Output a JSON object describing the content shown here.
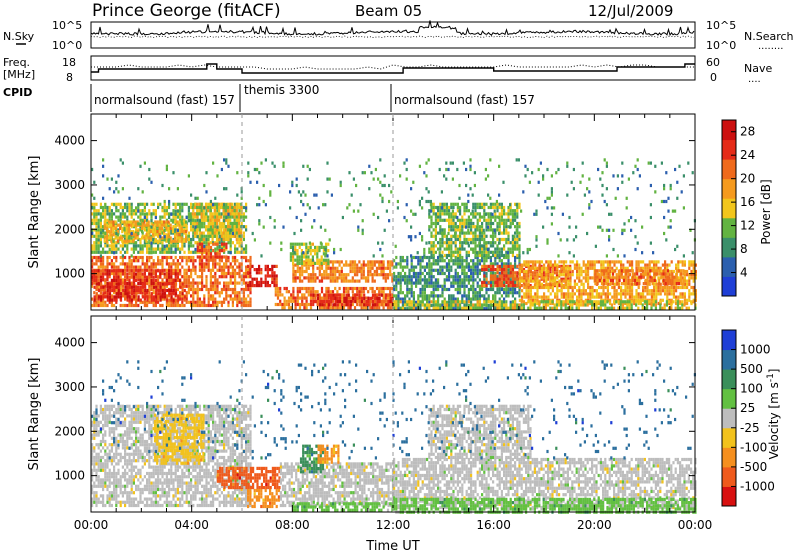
{
  "header": {
    "station": "Prince George (fitACF)",
    "beam": "Beam 05",
    "date": "12/Jul/2009"
  },
  "strip_labels": {
    "nsky": "N.Sky",
    "nsearch": "N.Search",
    "freq_line1": "Freq.",
    "freq_line2": "[MHz]",
    "nave": "Nave",
    "cpid": "CPID",
    "nsky_top": "10^5",
    "nsky_bottom": "10^0",
    "nsearch_top": "10^5",
    "nsearch_bottom": "10^0",
    "freq_top": "18",
    "freq_bottom": "8",
    "nave_top": "60",
    "nave_bottom": "0",
    "nsearch_style": "........",
    "nave_style": "...."
  },
  "cpid_segments": [
    {
      "label": "normalsound (fast) 157",
      "start_hour": 0
    },
    {
      "label": "themis 3300",
      "start_hour": 6
    },
    {
      "label": "normalsound (fast) 157",
      "start_hour": 12
    }
  ],
  "colors": {
    "power": [
      "#1f3fd6",
      "#2b5fae",
      "#3a8f6a",
      "#62b341",
      "#f2c61c",
      "#f59a1e",
      "#ef6a1c",
      "#e52b18",
      "#cc1010"
    ],
    "velocity": [
      "#1f3fd6",
      "#2b6f9e",
      "#3a8f5a",
      "#62c041",
      "#bdbdbd",
      "#f2c21c",
      "#f58f1e",
      "#ef5a1c",
      "#d81010"
    ]
  },
  "chart_data": [
    {
      "type": "heatmap",
      "name": "Power",
      "xlabel": "",
      "ylabel": "Slant Range [km]",
      "xlim": [
        0,
        24
      ],
      "ylim": [
        180,
        4600
      ],
      "yticks": [
        1000,
        2000,
        3000,
        4000
      ],
      "colorbar_label": "Power [dB]",
      "colorbar_ticks": [
        "4",
        "8",
        "12",
        "16",
        "20",
        "24",
        "28"
      ],
      "colorbar_range": [
        0,
        30
      ],
      "patches": [
        {
          "x0": 0.0,
          "x1": 6.3,
          "r0": 300,
          "r1": 1400,
          "v": 22
        },
        {
          "x0": 0.0,
          "x1": 3.5,
          "r0": 800,
          "r1": 1100,
          "v": 26
        },
        {
          "x0": 0.1,
          "x1": 3.7,
          "r0": 400,
          "r1": 800,
          "v": 27
        },
        {
          "x0": 0.0,
          "x1": 6.2,
          "r0": 1500,
          "r1": 2600,
          "v": 12
        },
        {
          "x0": 0.5,
          "x1": 3.8,
          "r0": 1700,
          "r1": 2200,
          "v": 17
        },
        {
          "x0": 4.0,
          "x1": 6.0,
          "r0": 1800,
          "r1": 2600,
          "v": 15
        },
        {
          "x0": 4.2,
          "x1": 5.4,
          "r0": 1300,
          "r1": 1700,
          "v": 24
        },
        {
          "x0": 6.2,
          "x1": 7.4,
          "r0": 700,
          "r1": 1200,
          "v": 28
        },
        {
          "x0": 7.3,
          "x1": 12.0,
          "r0": 200,
          "r1": 700,
          "v": 22
        },
        {
          "x0": 8.0,
          "x1": 12.0,
          "r0": 800,
          "r1": 1300,
          "v": 21
        },
        {
          "x0": 7.9,
          "x1": 9.4,
          "r0": 1200,
          "r1": 1700,
          "v": 13
        },
        {
          "x0": 8.8,
          "x1": 12.0,
          "r0": 300,
          "r1": 550,
          "v": 27
        },
        {
          "x0": 12.0,
          "x1": 17.0,
          "r0": 200,
          "r1": 1400,
          "v": 8
        },
        {
          "x0": 13.4,
          "x1": 17.0,
          "r0": 1400,
          "r1": 2600,
          "v": 11
        },
        {
          "x0": 15.5,
          "x1": 19.0,
          "r0": 700,
          "r1": 1200,
          "v": 24
        },
        {
          "x0": 17.0,
          "x1": 24.0,
          "r0": 300,
          "r1": 1300,
          "v": 18
        },
        {
          "x0": 20.0,
          "x1": 23.5,
          "r0": 800,
          "r1": 1100,
          "v": 21
        },
        {
          "x0": 12.0,
          "x1": 24.0,
          "r0": 200,
          "r1": 400,
          "v": 14
        },
        {
          "x0": 0.0,
          "x1": 24.0,
          "r0": 1400,
          "r1": 3600,
          "v": 8,
          "d": 0.06
        }
      ]
    },
    {
      "type": "heatmap",
      "name": "Velocity",
      "xlabel": "Time UT",
      "ylabel": "Slant Range [km]",
      "xlim": [
        0,
        24
      ],
      "ylim": [
        180,
        4600
      ],
      "xticks": [
        "00:00",
        "04:00",
        "08:00",
        "12:00",
        "16:00",
        "20:00",
        "00:00"
      ],
      "yticks": [
        1000,
        2000,
        3000,
        4000
      ],
      "colorbar_label": "Velocity [m s^-1]",
      "colorbar_ticks": [
        "1000",
        "500",
        "100",
        "25",
        "-25",
        "-100",
        "-500",
        "-1000"
      ],
      "patches": [
        {
          "x0": 0.0,
          "x1": 6.3,
          "r0": 300,
          "r1": 2600,
          "v": 4
        },
        {
          "x0": 2.5,
          "x1": 4.5,
          "r0": 1300,
          "r1": 2400,
          "v": 5
        },
        {
          "x0": 5.0,
          "x1": 7.5,
          "r0": 700,
          "r1": 1200,
          "v": 7
        },
        {
          "x0": 6.2,
          "x1": 7.5,
          "r0": 300,
          "r1": 700,
          "v": 6
        },
        {
          "x0": 7.5,
          "x1": 12.0,
          "r0": 300,
          "r1": 1300,
          "v": 4
        },
        {
          "x0": 8.3,
          "x1": 9.2,
          "r0": 1100,
          "r1": 1700,
          "v": 2
        },
        {
          "x0": 9.0,
          "x1": 9.8,
          "r0": 1300,
          "r1": 1700,
          "v": 6
        },
        {
          "x0": 8.0,
          "x1": 12.0,
          "r0": 200,
          "r1": 400,
          "v": 3
        },
        {
          "x0": 12.0,
          "x1": 24.0,
          "r0": 300,
          "r1": 1400,
          "v": 4
        },
        {
          "x0": 13.4,
          "x1": 17.5,
          "r0": 1400,
          "r1": 2600,
          "v": 4
        },
        {
          "x0": 12.0,
          "x1": 24.0,
          "r0": 200,
          "r1": 500,
          "v": 3
        },
        {
          "x0": 0.0,
          "x1": 24.0,
          "r0": 1400,
          "r1": 3600,
          "v": 1,
          "d": 0.05
        }
      ]
    }
  ]
}
